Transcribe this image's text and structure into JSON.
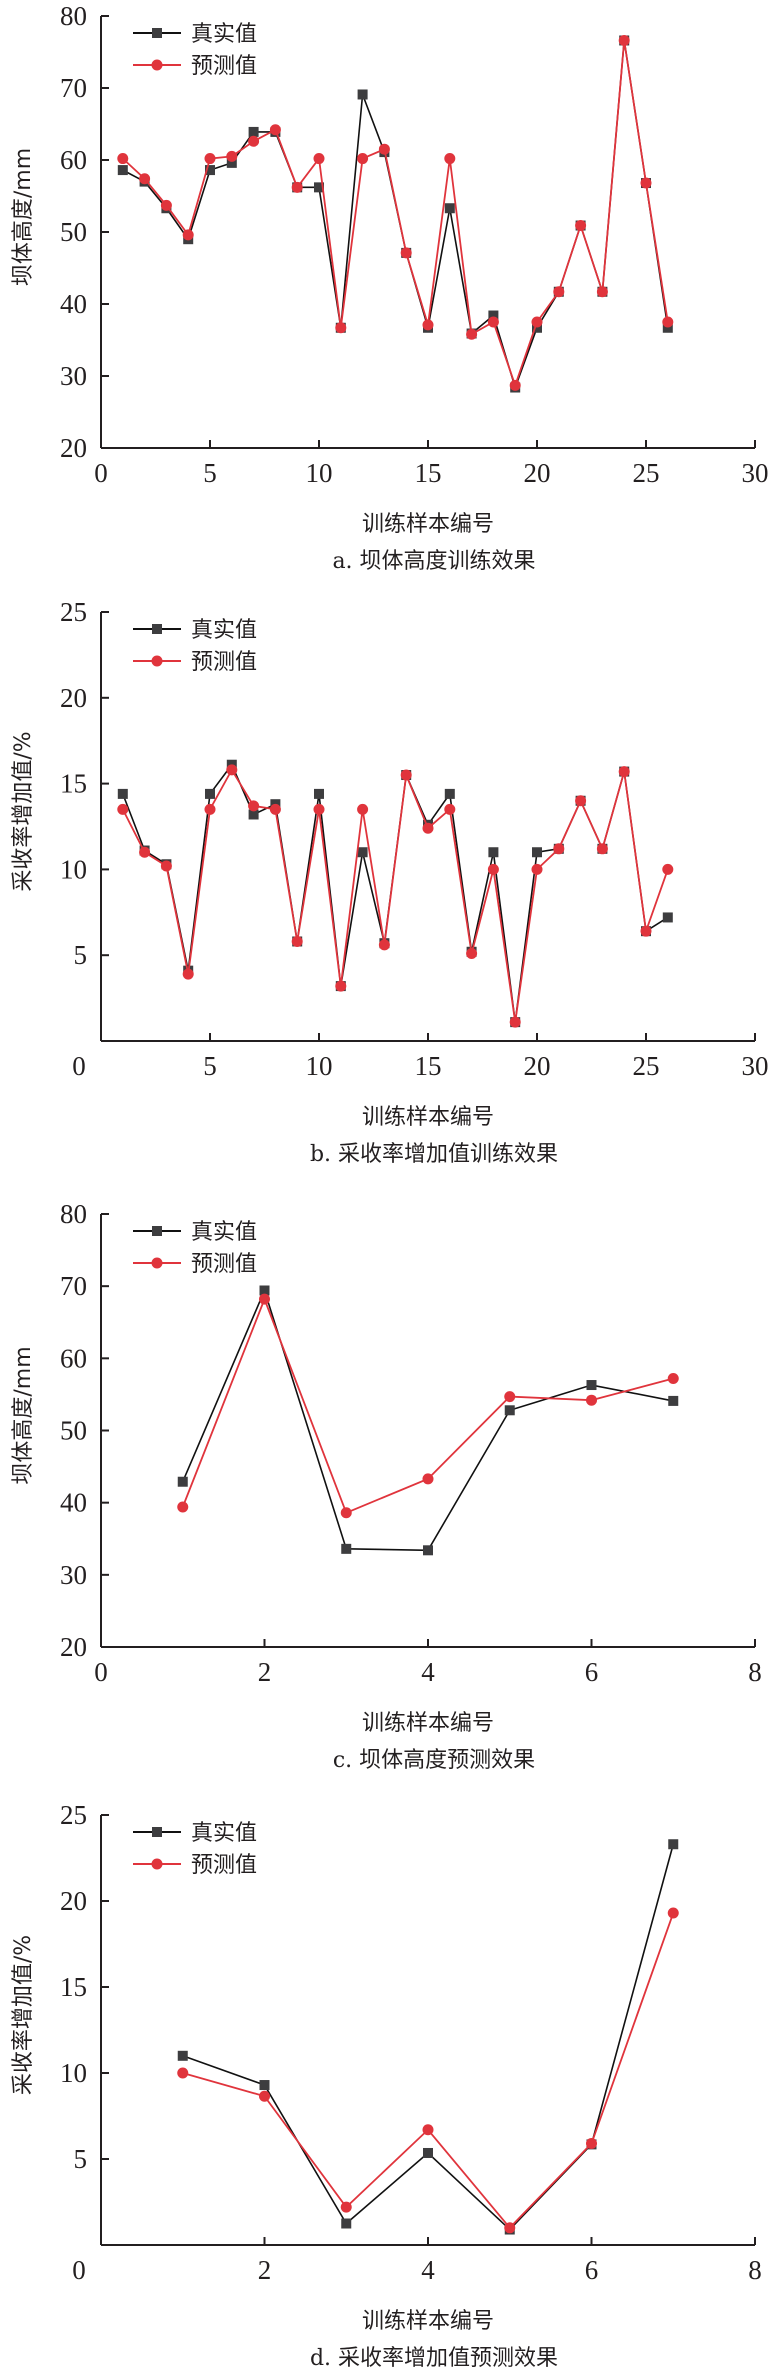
{
  "colors": {
    "real": "#3d3d3f",
    "real_line": "#111111",
    "pred": "#e0343c",
    "axis": "#231f20"
  },
  "chart_data": [
    {
      "type": "line",
      "id": "a",
      "caption": "a. 坝体高度训练效果",
      "xlabel": "训练样本编号",
      "ylabel": "坝体高度/mm",
      "xlim": [
        0,
        30
      ],
      "ylim": [
        20,
        80
      ],
      "xticks": [
        0,
        5,
        10,
        15,
        20,
        25,
        30
      ],
      "yticks": [
        20,
        30,
        40,
        50,
        60,
        70,
        80
      ],
      "legend": "top-left",
      "grid": false,
      "x": [
        1,
        2,
        3,
        4,
        5,
        6,
        7,
        8,
        9,
        10,
        11,
        12,
        13,
        14,
        15,
        16,
        17,
        18,
        19,
        20,
        21,
        22,
        23,
        24,
        25,
        26
      ],
      "series": [
        {
          "name": "真实值",
          "marker": "square",
          "values": [
            58.6,
            57.0,
            53.3,
            49.0,
            58.6,
            59.6,
            63.9,
            63.9,
            56.2,
            56.2,
            36.7,
            69.1,
            61.1,
            47.1,
            36.7,
            53.3,
            35.9,
            38.4,
            28.4,
            36.7,
            41.7,
            50.9,
            41.7,
            76.6,
            56.8,
            36.7
          ]
        },
        {
          "name": "预测值",
          "marker": "circle",
          "values": [
            60.2,
            57.4,
            53.7,
            49.6,
            60.2,
            60.5,
            62.6,
            64.2,
            56.2,
            60.2,
            36.7,
            60.2,
            61.5,
            47.1,
            37.1,
            60.2,
            35.8,
            37.5,
            28.7,
            37.5,
            41.7,
            50.9,
            41.7,
            76.6,
            56.8,
            37.5
          ]
        }
      ]
    },
    {
      "type": "line",
      "id": "b",
      "caption": "b. 采收率增加值训练效果",
      "xlabel": "训练样本编号",
      "ylabel": "采收率增加值/%",
      "xlim": [
        0,
        30
      ],
      "ylim": [
        0,
        25
      ],
      "xticks": [
        0,
        5,
        10,
        15,
        20,
        25,
        30
      ],
      "yticks": [
        5,
        10,
        15,
        20,
        25
      ],
      "legend": "top-left",
      "grid": false,
      "x": [
        1,
        2,
        3,
        4,
        5,
        6,
        7,
        8,
        9,
        10,
        11,
        12,
        13,
        14,
        15,
        16,
        17,
        18,
        19,
        20,
        21,
        22,
        23,
        24,
        25,
        26
      ],
      "series": [
        {
          "name": "真实值",
          "marker": "square",
          "values": [
            14.4,
            11.1,
            10.3,
            4.1,
            14.4,
            16.1,
            13.2,
            13.8,
            5.8,
            14.4,
            3.2,
            11.0,
            5.7,
            15.5,
            12.6,
            14.4,
            5.2,
            11.0,
            1.1,
            11.0,
            11.2,
            14.0,
            11.2,
            15.7,
            6.4,
            7.2
          ]
        },
        {
          "name": "预测值",
          "marker": "circle",
          "values": [
            13.5,
            11.0,
            10.2,
            3.9,
            13.5,
            15.8,
            13.7,
            13.5,
            5.8,
            13.5,
            3.2,
            13.5,
            5.6,
            15.5,
            12.4,
            13.5,
            5.1,
            10.0,
            1.1,
            10.0,
            11.2,
            14.0,
            11.2,
            15.7,
            6.4,
            10.0
          ]
        }
      ]
    },
    {
      "type": "line",
      "id": "c",
      "caption": "c. 坝体高度预测效果",
      "xlabel": "训练样本编号",
      "ylabel": "坝体高度/mm",
      "xlim": [
        0,
        8
      ],
      "ylim": [
        20,
        80
      ],
      "xticks": [
        0,
        2,
        4,
        6,
        8
      ],
      "yticks": [
        20,
        30,
        40,
        50,
        60,
        70,
        80
      ],
      "legend": "top-left",
      "grid": false,
      "x": [
        1,
        2,
        3,
        4,
        5,
        6,
        7
      ],
      "series": [
        {
          "name": "真实值",
          "marker": "square",
          "values": [
            42.9,
            69.4,
            33.6,
            33.4,
            52.8,
            56.3,
            54.1
          ]
        },
        {
          "name": "预测值",
          "marker": "circle",
          "values": [
            39.4,
            68.2,
            38.6,
            43.3,
            54.7,
            54.2,
            57.2
          ]
        }
      ]
    },
    {
      "type": "line",
      "id": "d",
      "caption": "d. 采收率增加值预测效果",
      "xlabel": "训练样本编号",
      "ylabel": "采收率增加值/%",
      "xlim": [
        0,
        8
      ],
      "ylim": [
        0,
        25
      ],
      "xticks": [
        0,
        2,
        4,
        6,
        8
      ],
      "yticks": [
        5,
        10,
        15,
        20,
        25
      ],
      "legend": "top-left",
      "grid": false,
      "x": [
        1,
        2,
        3,
        4,
        5,
        6,
        7
      ],
      "series": [
        {
          "name": "真实值",
          "marker": "square",
          "values": [
            11.0,
            9.3,
            1.25,
            5.35,
            0.9,
            5.85,
            23.3
          ]
        },
        {
          "name": "预测值",
          "marker": "circle",
          "values": [
            10.0,
            8.65,
            2.2,
            6.7,
            1.0,
            5.9,
            19.3
          ]
        }
      ]
    }
  ]
}
